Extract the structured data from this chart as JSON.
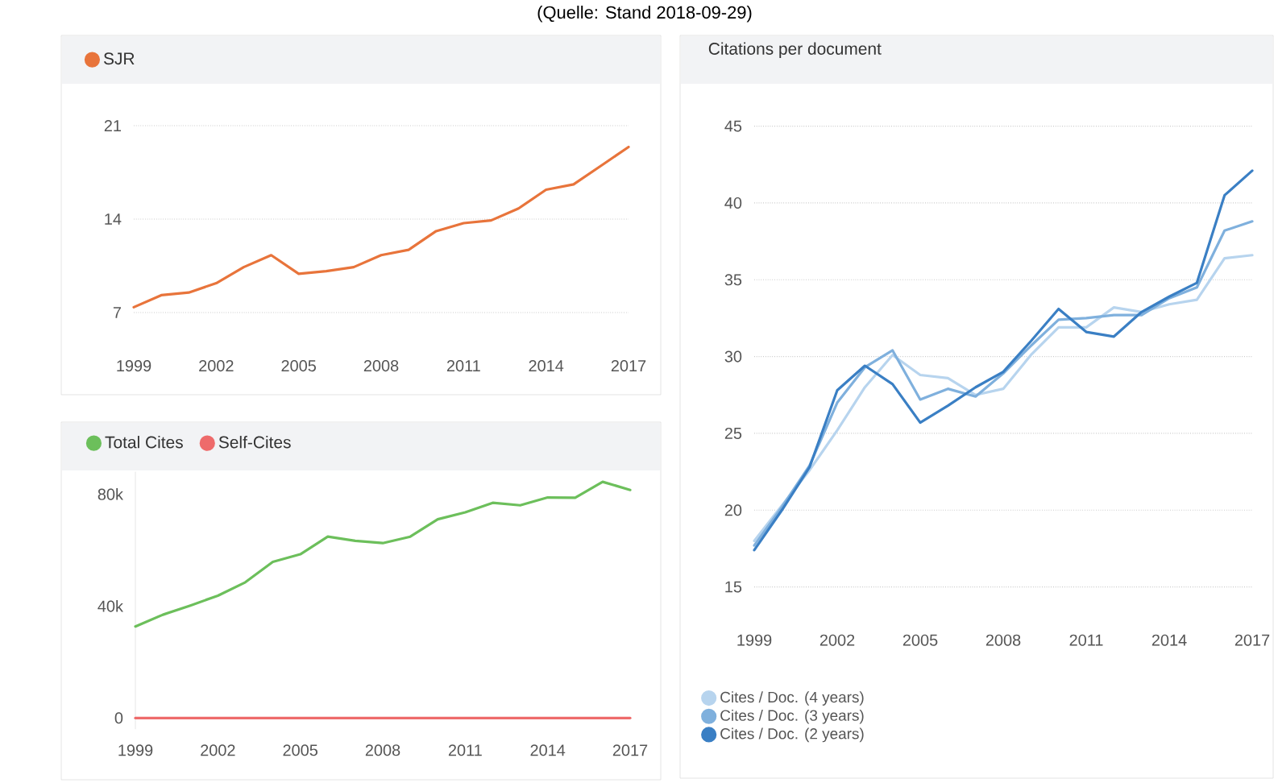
{
  "chart_data": [
    {
      "type": "line",
      "x": [
        1999,
        2000,
        2001,
        2002,
        2003,
        2004,
        2005,
        2006,
        2007,
        2008,
        2009,
        2010,
        2011,
        2012,
        2013,
        2014,
        2015,
        2016,
        2017
      ],
      "xlim": [
        1999,
        2017
      ],
      "xticks": [
        1999,
        2002,
        2005,
        2008,
        2011,
        2014,
        2017
      ],
      "ylim": [
        7,
        21
      ],
      "yticks": [
        7,
        14,
        21
      ],
      "grid": "y",
      "legend": "top left",
      "marker": "none",
      "line_style": "solid",
      "annotations": [
        "(Quelle: Stand 2018-09-29)"
      ],
      "series": [
        {
          "name": "SJR",
          "color": "#e8743b",
          "values": [
            7.4,
            8.3,
            8.5,
            9.2,
            10.4,
            11.3,
            9.9,
            10.1,
            10.4,
            11.3,
            11.7,
            13.1,
            13.7,
            13.9,
            14.8,
            16.2,
            16.6,
            18.0,
            19.4
          ]
        }
      ]
    },
    {
      "type": "line",
      "x": [
        1999,
        2000,
        2001,
        2002,
        2003,
        2004,
        2005,
        2006,
        2007,
        2008,
        2009,
        2010,
        2011,
        2012,
        2013,
        2014,
        2015,
        2016,
        2017
      ],
      "xlim": [
        1999,
        2017
      ],
      "xticks": [
        1999,
        2002,
        2005,
        2008,
        2011,
        2014,
        2017
      ],
      "ylim": [
        -4000,
        88000
      ],
      "yticks": [
        0,
        {
          "value": 40000,
          "label": "40k"
        },
        {
          "value": 80000,
          "label": "80k"
        }
      ],
      "legend": "top left",
      "marker": "none",
      "line_style": "solid",
      "series": [
        {
          "name": "Total Cites",
          "color": "#6cbf5b",
          "values": [
            32700,
            36900,
            40200,
            43700,
            48500,
            55800,
            58500,
            64800,
            63300,
            62500,
            64800,
            71000,
            73500,
            76900,
            76000,
            78800,
            78700,
            84400,
            81500
          ]
        },
        {
          "name": "Self-Cites",
          "color": "#ee6b6b",
          "values": [
            0,
            0,
            0,
            0,
            0,
            0,
            0,
            0,
            0,
            0,
            0,
            0,
            0,
            0,
            0,
            0,
            0,
            0,
            0
          ]
        }
      ]
    },
    {
      "type": "line",
      "title": "Citations per document",
      "x": [
        1999,
        2000,
        2001,
        2002,
        2003,
        2004,
        2005,
        2006,
        2007,
        2008,
        2009,
        2010,
        2011,
        2012,
        2013,
        2014,
        2015,
        2016,
        2017
      ],
      "xlim": [
        1999,
        2017
      ],
      "xticks": [
        1999,
        2002,
        2005,
        2008,
        2011,
        2014,
        2017
      ],
      "ylim": [
        15,
        45
      ],
      "yticks": [
        15,
        20,
        25,
        30,
        35,
        40,
        45
      ],
      "grid": "y",
      "legend": "bottom left",
      "marker": "none",
      "line_style": "solid",
      "series": [
        {
          "name": "Cites / Doc. (4 years)",
          "color": "#b7d4ee",
          "values": [
            18.0,
            20.3,
            22.6,
            25.2,
            28.0,
            30.1,
            28.8,
            28.6,
            27.5,
            27.9,
            30.1,
            31.9,
            31.9,
            33.2,
            32.9,
            33.4,
            33.7,
            36.4,
            36.6
          ]
        },
        {
          "name": "Cites / Doc. (3 years)",
          "color": "#7fb0dd",
          "values": [
            17.7,
            20.2,
            22.9,
            27.0,
            29.3,
            30.4,
            27.2,
            27.9,
            27.4,
            28.9,
            30.7,
            32.4,
            32.5,
            32.7,
            32.7,
            33.8,
            34.5,
            38.2,
            38.8
          ]
        },
        {
          "name": "Cites / Doc. (2 years)",
          "color": "#3a7fc4",
          "values": [
            17.4,
            20.0,
            22.8,
            27.8,
            29.4,
            28.2,
            25.7,
            26.8,
            28.0,
            29.0,
            31.0,
            33.1,
            31.6,
            31.3,
            32.9,
            33.9,
            34.8,
            40.5,
            42.1
          ]
        }
      ]
    }
  ]
}
